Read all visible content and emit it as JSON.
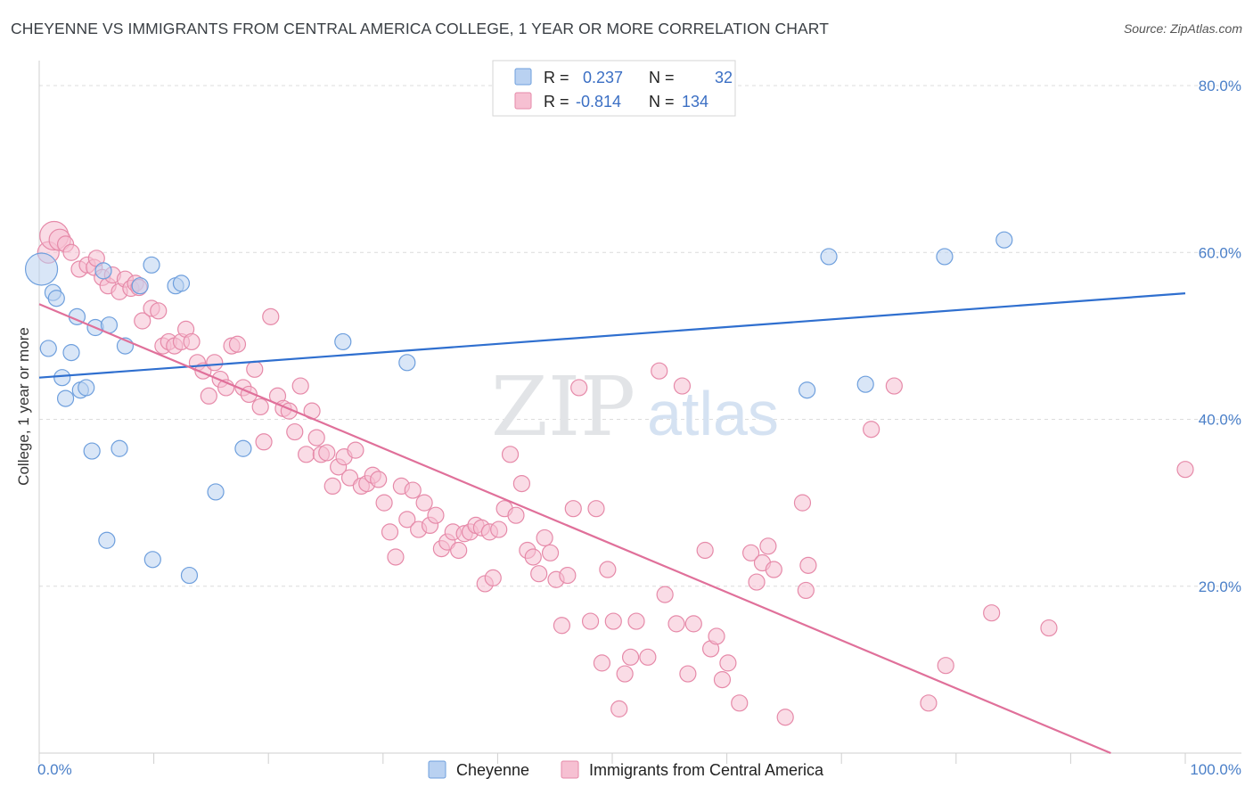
{
  "header": {
    "title": "CHEYENNE VS IMMIGRANTS FROM CENTRAL AMERICA COLLEGE, 1 YEAR OR MORE CORRELATION CHART",
    "source": "Source: ZipAtlas.com"
  },
  "watermark": {
    "zip": "ZIP",
    "atlas": "atlas"
  },
  "legend_box": {
    "rows": [
      {
        "r_label": "R =",
        "r_value": "0.237",
        "n_label": "N =",
        "n_value": "32",
        "color": "#b9d1f1",
        "stroke": "#6e9fdd"
      },
      {
        "r_label": "R =",
        "r_value": "-0.814",
        "n_label": "N =",
        "n_value": "134",
        "color": "#f6c0d2",
        "stroke": "#e68aa9"
      }
    ]
  },
  "bottom_legend": [
    {
      "label": "Cheyenne",
      "color": "#b9d1f1",
      "stroke": "#6e9fdd"
    },
    {
      "label": "Immigrants from Central America",
      "color": "#f6c0d2",
      "stroke": "#e68aa9"
    }
  ],
  "chart_data": {
    "type": "scatter",
    "title": "CHEYENNE VS IMMIGRANTS FROM CENTRAL AMERICA COLLEGE, 1 YEAR OR MORE CORRELATION CHART",
    "xlabel": "",
    "ylabel": "College, 1 year or more",
    "xlim": [
      0,
      100
    ],
    "ylim": [
      0,
      80
    ],
    "x_tick_labels": [
      "0.0%",
      "100.0%"
    ],
    "y_ticks": [
      20,
      40,
      60,
      80
    ],
    "y_tick_labels": [
      "20.0%",
      "40.0%",
      "60.0%",
      "80.0%"
    ],
    "grid": "horizontal dashed",
    "legend_position": "top-center",
    "series": [
      {
        "name": "Cheyenne",
        "color": "#6e9fdd",
        "fill": "#b9d1f1",
        "trend": {
          "x": [
            0,
            100
          ],
          "y": [
            45.0,
            55.1
          ],
          "color": "#2f6fcf"
        },
        "points": [
          [
            0.2,
            58.0,
            18
          ],
          [
            0.8,
            48.5,
            9
          ],
          [
            1.2,
            55.2,
            9
          ],
          [
            1.5,
            54.5,
            9
          ],
          [
            2.0,
            45.0,
            9
          ],
          [
            2.3,
            42.5,
            9
          ],
          [
            2.8,
            48.0,
            9
          ],
          [
            3.3,
            52.3,
            9
          ],
          [
            3.6,
            43.5,
            9
          ],
          [
            4.1,
            43.8,
            9
          ],
          [
            4.6,
            36.2,
            9
          ],
          [
            4.9,
            51.0,
            9
          ],
          [
            5.6,
            57.8,
            9
          ],
          [
            5.9,
            25.5,
            9
          ],
          [
            6.1,
            51.3,
            9
          ],
          [
            7.0,
            36.5,
            9
          ],
          [
            7.5,
            48.8,
            9
          ],
          [
            8.8,
            56.0,
            9
          ],
          [
            9.8,
            58.5,
            9
          ],
          [
            9.9,
            23.2,
            9
          ],
          [
            11.9,
            56.0,
            9
          ],
          [
            12.4,
            56.3,
            9
          ],
          [
            13.1,
            21.3,
            9
          ],
          [
            15.4,
            31.3,
            9
          ],
          [
            17.8,
            36.5,
            9
          ],
          [
            26.5,
            49.3,
            9
          ],
          [
            32.1,
            46.8,
            9
          ],
          [
            67.0,
            43.5,
            9
          ],
          [
            68.9,
            59.5,
            9
          ],
          [
            72.1,
            44.2,
            9
          ],
          [
            79.0,
            59.5,
            9
          ],
          [
            84.2,
            61.5,
            9
          ]
        ]
      },
      {
        "name": "Immigrants from Central America",
        "color": "#e68aa9",
        "fill": "#f6c0d2",
        "trend": {
          "x": [
            0,
            93.5
          ],
          "y": [
            53.8,
            0
          ],
          "color": "#e0709a"
        },
        "points": [
          [
            0.8,
            60.0,
            12
          ],
          [
            1.3,
            62.0,
            16
          ],
          [
            1.8,
            61.5,
            12
          ],
          [
            2.3,
            61.0,
            9
          ],
          [
            2.8,
            60.0,
            9
          ],
          [
            3.5,
            58.0,
            9
          ],
          [
            4.2,
            58.5,
            9
          ],
          [
            4.8,
            58.2,
            9
          ],
          [
            5.0,
            59.3,
            9
          ],
          [
            5.5,
            57.0,
            9
          ],
          [
            6.0,
            56.0,
            9
          ],
          [
            6.4,
            57.3,
            9
          ],
          [
            7.0,
            55.3,
            9
          ],
          [
            7.5,
            56.8,
            9
          ],
          [
            8.0,
            55.7,
            9
          ],
          [
            8.4,
            56.3,
            9
          ],
          [
            8.7,
            55.8,
            9
          ],
          [
            9.0,
            51.8,
            9
          ],
          [
            9.8,
            53.3,
            9
          ],
          [
            10.4,
            53.0,
            9
          ],
          [
            10.8,
            48.8,
            9
          ],
          [
            11.3,
            49.3,
            9
          ],
          [
            11.8,
            48.8,
            9
          ],
          [
            12.4,
            49.3,
            9
          ],
          [
            12.8,
            50.8,
            9
          ],
          [
            13.3,
            49.3,
            9
          ],
          [
            13.8,
            46.8,
            9
          ],
          [
            14.3,
            45.8,
            9
          ],
          [
            14.8,
            42.8,
            9
          ],
          [
            15.3,
            46.8,
            9
          ],
          [
            15.8,
            44.8,
            9
          ],
          [
            16.3,
            43.8,
            9
          ],
          [
            16.8,
            48.8,
            9
          ],
          [
            17.3,
            49.0,
            9
          ],
          [
            17.8,
            43.8,
            9
          ],
          [
            18.3,
            43.0,
            9
          ],
          [
            18.8,
            46.0,
            9
          ],
          [
            19.3,
            41.5,
            9
          ],
          [
            19.6,
            37.3,
            9
          ],
          [
            20.2,
            52.3,
            9
          ],
          [
            20.8,
            42.8,
            9
          ],
          [
            21.3,
            41.3,
            9
          ],
          [
            21.8,
            41.0,
            9
          ],
          [
            22.3,
            38.5,
            9
          ],
          [
            22.8,
            44.0,
            9
          ],
          [
            23.3,
            35.8,
            9
          ],
          [
            23.8,
            41.0,
            9
          ],
          [
            24.2,
            37.8,
            9
          ],
          [
            24.6,
            35.8,
            9
          ],
          [
            25.1,
            36.0,
            9
          ],
          [
            25.6,
            32.0,
            9
          ],
          [
            26.1,
            34.3,
            9
          ],
          [
            26.6,
            35.5,
            9
          ],
          [
            27.1,
            33.0,
            9
          ],
          [
            27.6,
            36.3,
            9
          ],
          [
            28.1,
            32.0,
            9
          ],
          [
            28.6,
            32.3,
            9
          ],
          [
            29.1,
            33.3,
            9
          ],
          [
            29.6,
            32.8,
            9
          ],
          [
            30.1,
            30.0,
            9
          ],
          [
            30.6,
            26.5,
            9
          ],
          [
            31.1,
            23.5,
            9
          ],
          [
            31.6,
            32.0,
            9
          ],
          [
            32.1,
            28.0,
            9
          ],
          [
            32.6,
            31.5,
            9
          ],
          [
            33.1,
            26.8,
            9
          ],
          [
            33.6,
            30.0,
            9
          ],
          [
            34.1,
            27.3,
            9
          ],
          [
            34.6,
            28.5,
            9
          ],
          [
            35.1,
            24.5,
            9
          ],
          [
            35.6,
            25.3,
            9
          ],
          [
            36.1,
            26.5,
            9
          ],
          [
            36.6,
            24.3,
            9
          ],
          [
            37.1,
            26.3,
            9
          ],
          [
            37.6,
            26.5,
            9
          ],
          [
            38.1,
            27.3,
            9
          ],
          [
            38.6,
            27.0,
            9
          ],
          [
            38.9,
            20.3,
            9
          ],
          [
            39.3,
            26.5,
            9
          ],
          [
            39.6,
            21.0,
            9
          ],
          [
            40.1,
            26.8,
            9
          ],
          [
            40.6,
            29.3,
            9
          ],
          [
            41.1,
            35.8,
            9
          ],
          [
            41.6,
            28.5,
            9
          ],
          [
            42.1,
            32.3,
            9
          ],
          [
            42.6,
            24.3,
            9
          ],
          [
            43.1,
            23.5,
            9
          ],
          [
            43.6,
            21.5,
            9
          ],
          [
            44.1,
            25.8,
            9
          ],
          [
            44.6,
            24.0,
            9
          ],
          [
            45.1,
            20.8,
            9
          ],
          [
            45.6,
            15.3,
            9
          ],
          [
            46.1,
            21.3,
            9
          ],
          [
            46.6,
            29.3,
            9
          ],
          [
            47.1,
            43.8,
            9
          ],
          [
            48.1,
            15.8,
            9
          ],
          [
            48.6,
            29.3,
            9
          ],
          [
            49.1,
            10.8,
            9
          ],
          [
            49.6,
            22.0,
            9
          ],
          [
            50.1,
            15.8,
            9
          ],
          [
            50.6,
            5.3,
            9
          ],
          [
            51.1,
            9.5,
            9
          ],
          [
            51.6,
            11.5,
            9
          ],
          [
            52.1,
            15.8,
            9
          ],
          [
            53.1,
            11.5,
            9
          ],
          [
            54.1,
            45.8,
            9
          ],
          [
            54.6,
            19.0,
            9
          ],
          [
            55.6,
            15.5,
            9
          ],
          [
            56.1,
            44.0,
            9
          ],
          [
            56.6,
            9.5,
            9
          ],
          [
            57.1,
            15.5,
            9
          ],
          [
            58.1,
            24.3,
            9
          ],
          [
            58.6,
            12.5,
            9
          ],
          [
            59.1,
            14.0,
            9
          ],
          [
            59.6,
            8.8,
            9
          ],
          [
            60.1,
            10.8,
            9
          ],
          [
            61.1,
            6.0,
            9
          ],
          [
            62.1,
            24.0,
            9
          ],
          [
            62.6,
            20.5,
            9
          ],
          [
            63.1,
            22.8,
            9
          ],
          [
            63.6,
            24.8,
            9
          ],
          [
            64.1,
            22.0,
            9
          ],
          [
            65.1,
            4.3,
            9
          ],
          [
            66.6,
            30.0,
            9
          ],
          [
            66.9,
            19.5,
            9
          ],
          [
            67.1,
            22.5,
            9
          ],
          [
            72.6,
            38.8,
            9
          ],
          [
            74.6,
            44.0,
            9
          ],
          [
            77.6,
            6.0,
            9
          ],
          [
            79.1,
            10.5,
            9
          ],
          [
            83.1,
            16.8,
            9
          ],
          [
            88.1,
            15.0,
            9
          ],
          [
            100.0,
            34.0,
            9
          ]
        ]
      }
    ]
  }
}
